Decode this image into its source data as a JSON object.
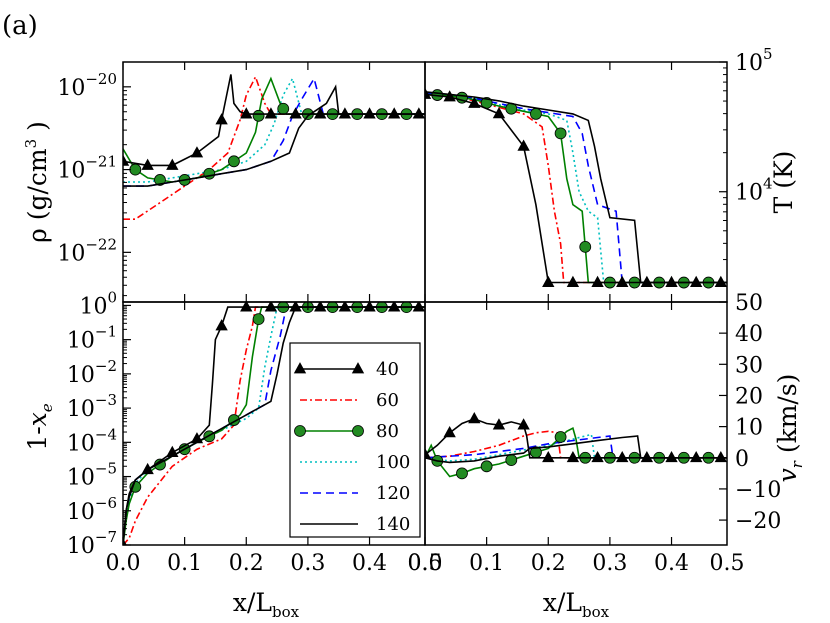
{
  "panel_label": "(a)",
  "x_ticks": [
    "0.0",
    "0.1",
    "0.2",
    "0.3",
    "0.4",
    "0.5"
  ],
  "x_label": "x/L",
  "x_label_sub": "box",
  "chart_data": [
    {
      "type": "line",
      "panel": "top-left",
      "ylabel": "ρ (g/cm³)",
      "yscale": "log",
      "xlim": [
        0,
        0.49
      ],
      "ylim": [
        -22.6,
        -19.7
      ],
      "y_ticks": [
        {
          "base": "10",
          "exp": "−20",
          "v": -20
        },
        {
          "base": "10",
          "exp": "−21",
          "v": -21
        },
        {
          "base": "10",
          "exp": "−22",
          "v": -22
        }
      ],
      "series": [
        {
          "name": "40",
          "x": [
            0,
            0.04,
            0.08,
            0.12,
            0.155,
            0.16,
            0.175,
            0.18,
            0.19,
            0.2,
            0.49
          ],
          "y": [
            -20.9,
            -20.95,
            -20.95,
            -20.8,
            -20.6,
            -20.4,
            -19.85,
            -20.2,
            -20.3,
            -20.33,
            -20.33
          ]
        },
        {
          "name": "60",
          "x": [
            0,
            0.02,
            0.06,
            0.1,
            0.14,
            0.17,
            0.19,
            0.2,
            0.215,
            0.23,
            0.24,
            0.49
          ],
          "y": [
            -21.6,
            -21.6,
            -21.4,
            -21.2,
            -21.0,
            -20.8,
            -20.4,
            -20.1,
            -19.88,
            -20.2,
            -20.33,
            -20.33
          ]
        },
        {
          "name": "80",
          "x": [
            0,
            0.02,
            0.04,
            0.08,
            0.12,
            0.16,
            0.2,
            0.215,
            0.225,
            0.24,
            0.255,
            0.265,
            0.49
          ],
          "y": [
            -20.75,
            -21.0,
            -21.1,
            -21.15,
            -21.1,
            -21.0,
            -20.8,
            -20.55,
            -20.15,
            -19.9,
            -20.2,
            -20.33,
            -20.33
          ]
        },
        {
          "name": "100",
          "x": [
            0,
            0.04,
            0.08,
            0.12,
            0.16,
            0.2,
            0.23,
            0.245,
            0.26,
            0.275,
            0.29,
            0.49
          ],
          "y": [
            -21.15,
            -21.15,
            -21.1,
            -21.05,
            -21.0,
            -20.9,
            -20.7,
            -20.45,
            -20.1,
            -19.9,
            -20.33,
            -20.33
          ]
        },
        {
          "name": "120",
          "x": [
            0,
            0.04,
            0.08,
            0.12,
            0.16,
            0.2,
            0.24,
            0.26,
            0.275,
            0.29,
            0.31,
            0.325,
            0.49
          ],
          "y": [
            -21.2,
            -21.2,
            -21.15,
            -21.1,
            -21.05,
            -21.0,
            -20.9,
            -20.65,
            -20.35,
            -20.15,
            -19.9,
            -20.33,
            -20.33
          ]
        },
        {
          "name": "140",
          "x": [
            0,
            0.04,
            0.08,
            0.12,
            0.16,
            0.2,
            0.24,
            0.27,
            0.285,
            0.3,
            0.33,
            0.345,
            0.35,
            0.49
          ],
          "y": [
            -21.2,
            -21.2,
            -21.15,
            -21.1,
            -21.05,
            -21.0,
            -20.9,
            -20.8,
            -20.5,
            -20.35,
            -20.2,
            -20.0,
            -20.33,
            -20.33
          ]
        }
      ]
    },
    {
      "type": "line",
      "panel": "top-right",
      "ylabel": "T (K)",
      "yscale": "log",
      "xlim": [
        0,
        0.49
      ],
      "ylim": [
        3.15,
        5.0
      ],
      "y_ticks": [
        {
          "base": "10",
          "exp": "5",
          "v": 5
        },
        {
          "base": "10",
          "exp": "4",
          "v": 4
        }
      ],
      "series": [
        {
          "name": "40",
          "x": [
            0,
            0.04,
            0.08,
            0.12,
            0.16,
            0.18,
            0.2,
            0.49
          ],
          "y": [
            4.75,
            4.73,
            4.68,
            4.6,
            4.35,
            3.9,
            3.3,
            3.3
          ]
        },
        {
          "name": "60",
          "x": [
            0,
            0.04,
            0.08,
            0.12,
            0.16,
            0.19,
            0.2,
            0.21,
            0.22,
            0.225,
            0.49
          ],
          "y": [
            4.75,
            4.74,
            4.7,
            4.65,
            4.6,
            4.5,
            4.2,
            3.85,
            3.6,
            3.3,
            3.3
          ]
        },
        {
          "name": "80",
          "x": [
            0,
            0.04,
            0.08,
            0.12,
            0.16,
            0.2,
            0.22,
            0.23,
            0.24,
            0.255,
            0.265,
            0.49
          ],
          "y": [
            4.75,
            4.74,
            4.71,
            4.66,
            4.62,
            4.58,
            4.45,
            4.1,
            3.9,
            3.85,
            3.3,
            3.3
          ]
        },
        {
          "name": "100",
          "x": [
            0,
            0.04,
            0.08,
            0.12,
            0.16,
            0.2,
            0.23,
            0.24,
            0.25,
            0.265,
            0.28,
            0.29,
            0.49
          ],
          "y": [
            4.75,
            4.74,
            4.72,
            4.67,
            4.63,
            4.6,
            4.55,
            4.3,
            4.0,
            3.85,
            3.8,
            3.3,
            3.3
          ]
        },
        {
          "name": "120",
          "x": [
            0,
            0.04,
            0.08,
            0.12,
            0.16,
            0.2,
            0.24,
            0.255,
            0.265,
            0.28,
            0.31,
            0.32,
            0.49
          ],
          "y": [
            4.76,
            4.74,
            4.72,
            4.68,
            4.64,
            4.61,
            4.58,
            4.45,
            4.2,
            3.9,
            3.85,
            3.3,
            3.3
          ]
        },
        {
          "name": "140",
          "x": [
            0,
            0.04,
            0.08,
            0.12,
            0.16,
            0.2,
            0.24,
            0.265,
            0.275,
            0.285,
            0.3,
            0.34,
            0.35,
            0.49
          ],
          "y": [
            4.77,
            4.75,
            4.73,
            4.7,
            4.66,
            4.63,
            4.6,
            4.55,
            4.35,
            4.1,
            3.8,
            3.78,
            3.3,
            3.3
          ]
        }
      ]
    },
    {
      "type": "line",
      "panel": "bottom-left",
      "ylabel": "1-x",
      "ylabel_sub": "e",
      "yscale": "log",
      "xlim": [
        0,
        0.49
      ],
      "ylim": [
        -7,
        0.1
      ],
      "y_ticks": [
        {
          "base": "10",
          "exp": "0",
          "v": 0
        },
        {
          "base": "10",
          "exp": "−1",
          "v": -1
        },
        {
          "base": "10",
          "exp": "−2",
          "v": -2
        },
        {
          "base": "10",
          "exp": "−3",
          "v": -3
        },
        {
          "base": "10",
          "exp": "−4",
          "v": -4
        },
        {
          "base": "10",
          "exp": "−5",
          "v": -5
        },
        {
          "base": "10",
          "exp": "−6",
          "v": -6
        },
        {
          "base": "10",
          "exp": "−7",
          "v": -7
        }
      ],
      "series": [
        {
          "name": "40",
          "x": [
            0,
            0.005,
            0.01,
            0.02,
            0.04,
            0.08,
            0.12,
            0.14,
            0.145,
            0.15,
            0.16,
            0.17,
            0.49
          ],
          "y": [
            -7,
            -6.0,
            -5.5,
            -5.1,
            -4.8,
            -4.3,
            -3.9,
            -3.5,
            -2.3,
            -1.0,
            -0.6,
            -0.05,
            -0.05
          ]
        },
        {
          "name": "60",
          "x": [
            0,
            0.01,
            0.02,
            0.04,
            0.08,
            0.12,
            0.16,
            0.18,
            0.19,
            0.2,
            0.21,
            0.215,
            0.49
          ],
          "y": [
            -7,
            -6.8,
            -6.3,
            -5.6,
            -4.7,
            -4.2,
            -3.9,
            -3.5,
            -2.2,
            -1.3,
            -0.6,
            -0.05,
            -0.05
          ]
        },
        {
          "name": "80",
          "x": [
            0,
            0.005,
            0.01,
            0.02,
            0.04,
            0.08,
            0.12,
            0.16,
            0.19,
            0.2,
            0.21,
            0.22,
            0.225,
            0.49
          ],
          "y": [
            -7,
            -6.3,
            -5.8,
            -5.3,
            -4.9,
            -4.4,
            -4.0,
            -3.65,
            -3.2,
            -2.9,
            -1.5,
            -0.4,
            -0.05,
            -0.05
          ]
        },
        {
          "name": "100",
          "x": [
            0,
            0.005,
            0.01,
            0.02,
            0.04,
            0.08,
            0.12,
            0.16,
            0.2,
            0.22,
            0.23,
            0.24,
            0.25,
            0.49
          ],
          "y": [
            -7,
            -6.2,
            -5.7,
            -5.2,
            -4.8,
            -4.4,
            -4.0,
            -3.65,
            -3.3,
            -3.0,
            -1.8,
            -0.9,
            -0.05,
            -0.05
          ]
        },
        {
          "name": "120",
          "x": [
            0,
            0.005,
            0.01,
            0.02,
            0.04,
            0.08,
            0.12,
            0.16,
            0.2,
            0.23,
            0.24,
            0.255,
            0.265,
            0.49
          ],
          "y": [
            -7,
            -6.1,
            -5.6,
            -5.1,
            -4.8,
            -4.4,
            -4.0,
            -3.6,
            -3.2,
            -2.9,
            -1.9,
            -0.9,
            -0.05,
            -0.05
          ]
        },
        {
          "name": "140",
          "x": [
            0,
            0.005,
            0.01,
            0.02,
            0.04,
            0.08,
            0.12,
            0.16,
            0.2,
            0.24,
            0.25,
            0.26,
            0.27,
            0.28,
            0.49
          ],
          "y": [
            -7,
            -6.0,
            -5.6,
            -5.1,
            -4.8,
            -4.4,
            -4.0,
            -3.6,
            -3.2,
            -2.8,
            -2.0,
            -1.1,
            -0.5,
            -0.05,
            -0.05
          ]
        }
      ]
    },
    {
      "type": "line",
      "panel": "bottom-right",
      "ylabel": "v",
      "ylabel_sub": "r",
      "ylabel_unit": "(km/s)",
      "yscale": "linear",
      "xlim": [
        0,
        0.49
      ],
      "ylim": [
        -28,
        50
      ],
      "y_ticks": [
        {
          "label": "50",
          "v": 50
        },
        {
          "label": "40",
          "v": 40
        },
        {
          "label": "30",
          "v": 30
        },
        {
          "label": "20",
          "v": 20
        },
        {
          "label": "10",
          "v": 10
        },
        {
          "label": "0",
          "v": 0
        },
        {
          "label": "−10",
          "v": -10
        },
        {
          "label": "−20",
          "v": -20
        }
      ],
      "series": [
        {
          "name": "40",
          "x": [
            0,
            0.02,
            0.04,
            0.06,
            0.08,
            0.1,
            0.12,
            0.14,
            0.16,
            0.165,
            0.17,
            0.49
          ],
          "y": [
            1,
            4,
            8,
            11,
            12.5,
            11,
            10.5,
            11.5,
            10.5,
            7,
            0,
            0
          ]
        },
        {
          "name": "60",
          "x": [
            0,
            0.04,
            0.08,
            0.12,
            0.16,
            0.18,
            0.2,
            0.215,
            0.22,
            0.49
          ],
          "y": [
            0,
            0.5,
            2,
            4,
            7,
            8,
            8.5,
            8,
            0,
            0
          ]
        },
        {
          "name": "80",
          "x": [
            0,
            0.01,
            0.02,
            0.04,
            0.06,
            0.08,
            0.12,
            0.16,
            0.2,
            0.23,
            0.24,
            0.245,
            0.25,
            0.49
          ],
          "y": [
            0,
            4,
            -1,
            -6,
            -5,
            -3.5,
            -2,
            0.5,
            3,
            8.5,
            9.5,
            6,
            0,
            0
          ]
        },
        {
          "name": "100",
          "x": [
            0,
            0.04,
            0.08,
            0.12,
            0.16,
            0.2,
            0.24,
            0.26,
            0.27,
            0.275,
            0.49
          ],
          "y": [
            0,
            -1,
            -0.5,
            1,
            2.5,
            4,
            6,
            7,
            7.5,
            0,
            0
          ]
        },
        {
          "name": "120",
          "x": [
            0,
            0.04,
            0.08,
            0.12,
            0.16,
            0.2,
            0.24,
            0.28,
            0.3,
            0.305,
            0.49
          ],
          "y": [
            0,
            0.5,
            1,
            2,
            3,
            4.5,
            5.5,
            6.5,
            7,
            0,
            0
          ]
        },
        {
          "name": "140",
          "x": [
            0,
            0.02,
            0.04,
            0.08,
            0.12,
            0.16,
            0.17,
            0.2,
            0.24,
            0.28,
            0.32,
            0.345,
            0.35,
            0.49
          ],
          "y": [
            0,
            -1,
            -1.5,
            -1,
            0.5,
            1.5,
            3,
            3.5,
            4.5,
            5.5,
            6.5,
            7,
            0,
            0
          ]
        }
      ]
    }
  ],
  "legend": {
    "placement": "inside bottom-left panel, right side",
    "entries": [
      {
        "label": "40",
        "color": "#000000",
        "dash": "solid",
        "marker": "triangle",
        "marker_fill": "#000000"
      },
      {
        "label": "60",
        "color": "#ff0000",
        "dash": "dashdot",
        "marker": "none",
        "marker_fill": ""
      },
      {
        "label": "80",
        "color": "#008000",
        "dash": "solid",
        "marker": "circle",
        "marker_fill": "#228b22"
      },
      {
        "label": "100",
        "color": "#00bfbf",
        "dash": "dotted",
        "marker": "none",
        "marker_fill": ""
      },
      {
        "label": "120",
        "color": "#0000ff",
        "dash": "dashed",
        "marker": "none",
        "marker_fill": ""
      },
      {
        "label": "140",
        "color": "#000000",
        "dash": "solid",
        "marker": "none",
        "marker_fill": ""
      }
    ]
  }
}
